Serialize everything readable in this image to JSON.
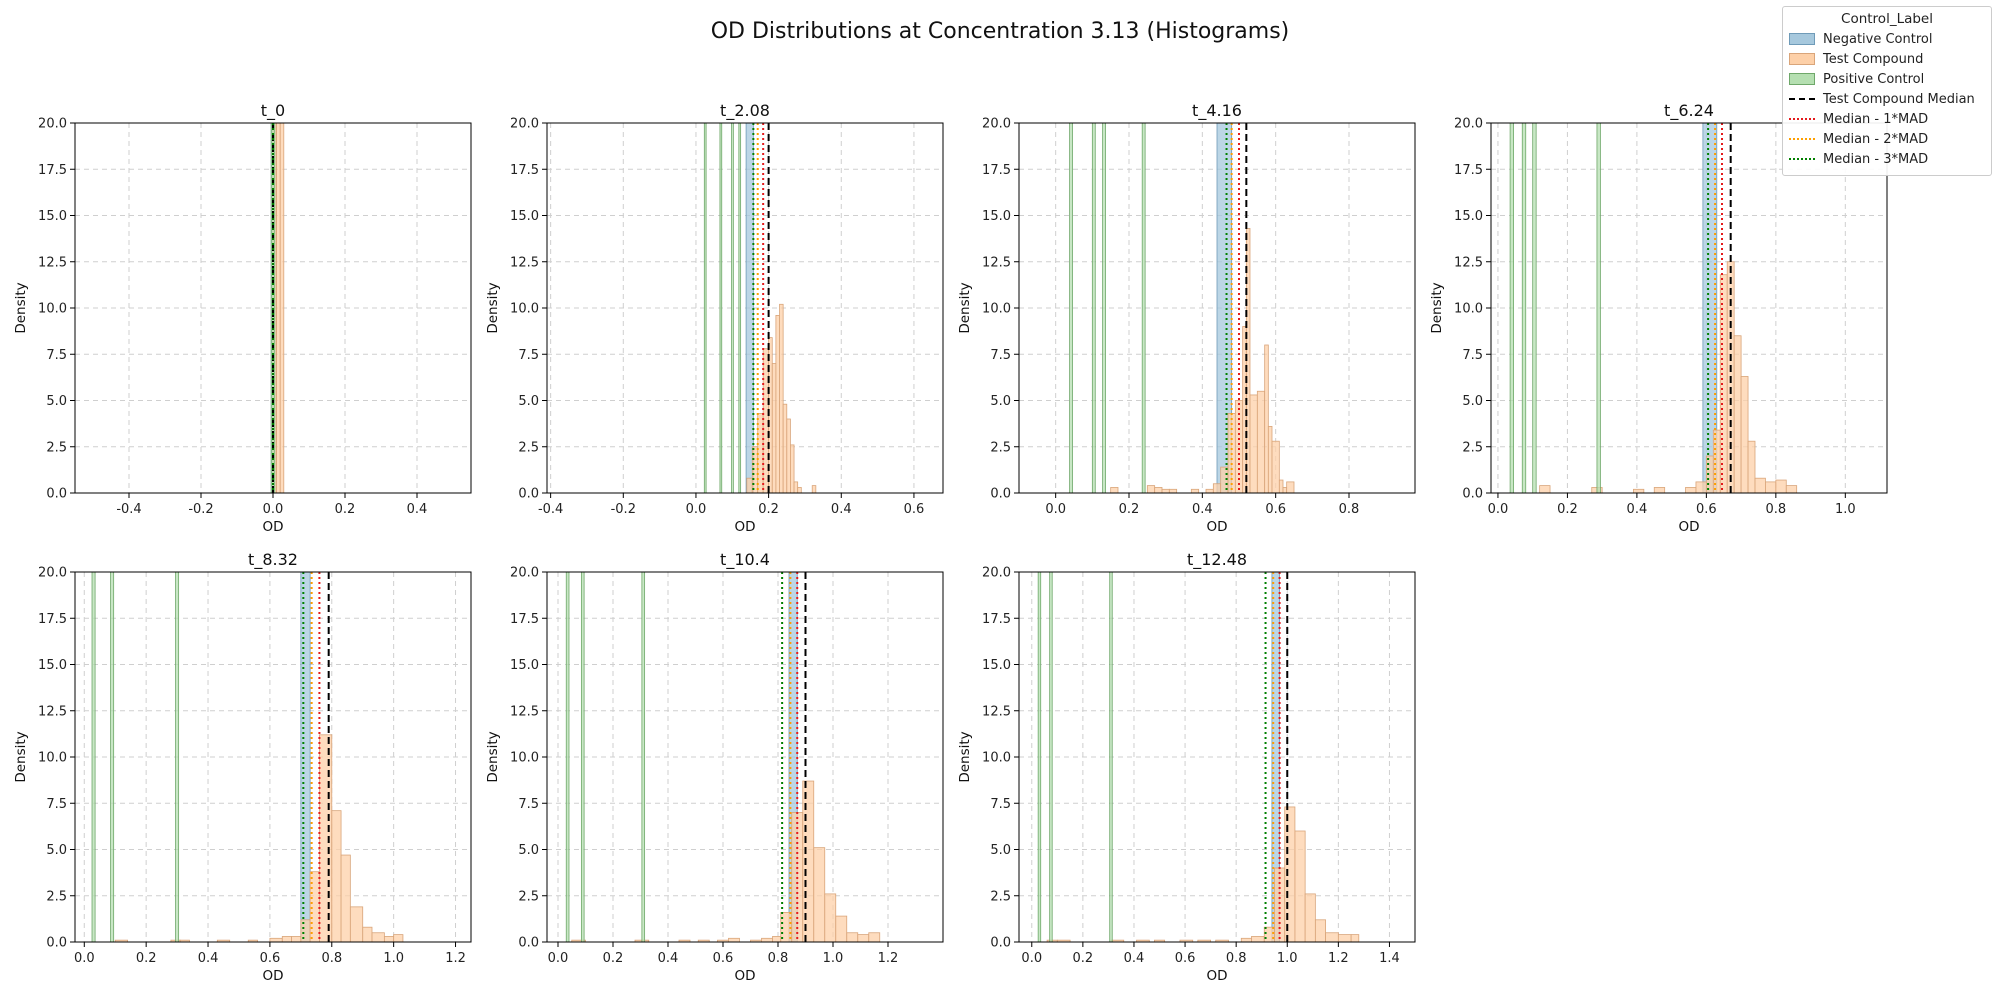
{
  "figure": {
    "title": "OD Distributions at Concentration 3.13 (Histograms)"
  },
  "legend": {
    "title": "Control_Label",
    "items": [
      {
        "label": "Negative Control",
        "kind": "patch",
        "fill": "#a6c8dd",
        "edge": "#6f9bb8"
      },
      {
        "label": "Test Compound",
        "kind": "patch",
        "fill": "#fdd0a8",
        "edge": "#d9a57a"
      },
      {
        "label": "Positive Control",
        "kind": "patch",
        "fill": "#b5dfb1",
        "edge": "#6fa86a"
      },
      {
        "label": "Test Compound Median",
        "kind": "line",
        "color": "#000000",
        "style": "dashed"
      },
      {
        "label": "Median - 1*MAD",
        "kind": "line",
        "color": "#e41a1c",
        "style": "dotted"
      },
      {
        "label": "Median - 2*MAD",
        "kind": "line",
        "color": "#ff9f00",
        "style": "dotted"
      },
      {
        "label": "Median - 3*MAD",
        "kind": "line",
        "color": "#008000",
        "style": "dotted"
      }
    ]
  },
  "chart_data": [
    {
      "type": "bar",
      "title": "t_0",
      "xlabel": "OD",
      "ylabel": "Density",
      "xlim": [
        -0.55,
        0.55
      ],
      "ylim": [
        0,
        20
      ],
      "xticks": [
        -0.4,
        -0.2,
        0.0,
        0.2,
        0.4
      ],
      "yticks": [
        0.0,
        2.5,
        5.0,
        7.5,
        10.0,
        12.5,
        15.0,
        17.5,
        20.0
      ],
      "series": [
        {
          "name": "Negative Control",
          "bins": [
            [
              -0.005,
              0.005,
              100
            ]
          ]
        },
        {
          "name": "Test Compound",
          "bins": [
            [
              0.0,
              0.01,
              100
            ],
            [
              0.01,
              0.02,
              100
            ],
            [
              0.02,
              0.03,
              60
            ]
          ]
        },
        {
          "name": "Positive Control",
          "bins": [
            [
              -0.005,
              0.005,
              100
            ]
          ]
        }
      ],
      "lines": {
        "median": 0.0,
        "mad1": 0.0,
        "mad2": 0.0,
        "mad3": 0.0
      }
    },
    {
      "type": "bar",
      "title": "t_2.08",
      "xlabel": "OD",
      "ylabel": "Density",
      "xlim": [
        -0.41,
        0.68
      ],
      "ylim": [
        0,
        20
      ],
      "xticks": [
        -0.4,
        -0.2,
        0.0,
        0.2,
        0.4,
        0.6
      ],
      "yticks": [
        0.0,
        2.5,
        5.0,
        7.5,
        10.0,
        12.5,
        15.0,
        17.5,
        20.0
      ],
      "series": [
        {
          "name": "Negative Control",
          "bins": [
            [
              0.138,
              0.158,
              40
            ]
          ]
        },
        {
          "name": "Test Compound",
          "bins": [
            [
              0.14,
              0.155,
              0.8
            ],
            [
              0.155,
              0.17,
              2.5
            ],
            [
              0.17,
              0.185,
              4.3
            ],
            [
              0.185,
              0.2,
              7.8
            ],
            [
              0.2,
              0.21,
              8.4
            ],
            [
              0.21,
              0.22,
              7.0
            ],
            [
              0.22,
              0.23,
              9.6
            ],
            [
              0.23,
              0.24,
              10.2
            ],
            [
              0.24,
              0.25,
              4.8
            ],
            [
              0.25,
              0.26,
              4.0
            ],
            [
              0.26,
              0.27,
              2.6
            ],
            [
              0.27,
              0.28,
              0.6
            ],
            [
              0.28,
              0.29,
              0.3
            ],
            [
              0.32,
              0.33,
              0.4
            ]
          ]
        },
        {
          "name": "Positive Control",
          "bins": [
            [
              0.023,
              0.028,
              40
            ],
            [
              0.066,
              0.071,
              40
            ],
            [
              0.098,
              0.103,
              40
            ],
            [
              0.118,
              0.123,
              40
            ]
          ]
        }
      ],
      "lines": {
        "median": 0.2,
        "mad1": 0.185,
        "mad2": 0.17,
        "mad3": 0.158
      }
    },
    {
      "type": "bar",
      "title": "t_4.16",
      "xlabel": "OD",
      "ylabel": "Density",
      "xlim": [
        -0.1,
        0.98
      ],
      "ylim": [
        0,
        20
      ],
      "xticks": [
        0.0,
        0.2,
        0.4,
        0.6,
        0.8
      ],
      "yticks": [
        0.0,
        2.5,
        5.0,
        7.5,
        10.0,
        12.5,
        15.0,
        17.5,
        20.0
      ],
      "series": [
        {
          "name": "Negative Control",
          "bins": [
            [
              0.44,
              0.48,
              40
            ]
          ]
        },
        {
          "name": "Test Compound",
          "bins": [
            [
              0.15,
              0.17,
              0.3
            ],
            [
              0.25,
              0.27,
              0.4
            ],
            [
              0.27,
              0.29,
              0.3
            ],
            [
              0.29,
              0.31,
              0.2
            ],
            [
              0.31,
              0.33,
              0.2
            ],
            [
              0.37,
              0.39,
              0.2
            ],
            [
              0.41,
              0.43,
              0.2
            ],
            [
              0.43,
              0.45,
              0.5
            ],
            [
              0.45,
              0.47,
              1.4
            ],
            [
              0.47,
              0.49,
              4.3
            ],
            [
              0.49,
              0.51,
              5.0
            ],
            [
              0.51,
              0.52,
              9.0
            ],
            [
              0.52,
              0.53,
              14.3
            ],
            [
              0.53,
              0.55,
              5.3
            ],
            [
              0.55,
              0.57,
              5.5
            ],
            [
              0.57,
              0.58,
              8.0
            ],
            [
              0.58,
              0.59,
              3.6
            ],
            [
              0.59,
              0.61,
              2.8
            ],
            [
              0.61,
              0.62,
              0.7
            ],
            [
              0.62,
              0.63,
              0.3
            ],
            [
              0.63,
              0.65,
              0.6
            ]
          ]
        },
        {
          "name": "Positive Control",
          "bins": [
            [
              0.038,
              0.046,
              40
            ],
            [
              0.1,
              0.108,
              40
            ],
            [
              0.128,
              0.136,
              40
            ],
            [
              0.236,
              0.244,
              40
            ]
          ]
        }
      ],
      "lines": {
        "median": 0.52,
        "mad1": 0.5,
        "mad2": 0.48,
        "mad3": 0.466
      }
    },
    {
      "type": "bar",
      "title": "t_6.24",
      "xlabel": "OD",
      "ylabel": "Density",
      "xlim": [
        -0.02,
        1.12
      ],
      "ylim": [
        0,
        20
      ],
      "xticks": [
        0.0,
        0.2,
        0.4,
        0.6,
        0.8,
        1.0
      ],
      "yticks": [
        0.0,
        2.5,
        5.0,
        7.5,
        10.0,
        12.5,
        15.0,
        17.5,
        20.0
      ],
      "series": [
        {
          "name": "Negative Control",
          "bins": [
            [
              0.59,
              0.63,
              40
            ]
          ]
        },
        {
          "name": "Test Compound",
          "bins": [
            [
              0.12,
              0.15,
              0.4
            ],
            [
              0.27,
              0.3,
              0.3
            ],
            [
              0.39,
              0.42,
              0.2
            ],
            [
              0.45,
              0.48,
              0.3
            ],
            [
              0.54,
              0.57,
              0.3
            ],
            [
              0.57,
              0.6,
              0.6
            ],
            [
              0.6,
              0.62,
              2.0
            ],
            [
              0.62,
              0.64,
              3.4
            ],
            [
              0.64,
              0.66,
              11.8
            ],
            [
              0.66,
              0.68,
              12.5
            ],
            [
              0.68,
              0.7,
              8.5
            ],
            [
              0.7,
              0.72,
              6.3
            ],
            [
              0.72,
              0.74,
              2.8
            ],
            [
              0.74,
              0.77,
              0.8
            ],
            [
              0.77,
              0.8,
              0.6
            ],
            [
              0.8,
              0.83,
              0.7
            ],
            [
              0.83,
              0.86,
              0.4
            ]
          ]
        },
        {
          "name": "Positive Control",
          "bins": [
            [
              0.035,
              0.045,
              40
            ],
            [
              0.07,
              0.08,
              40
            ],
            [
              0.1,
              0.11,
              40
            ],
            [
              0.285,
              0.295,
              40
            ]
          ]
        }
      ],
      "lines": {
        "median": 0.67,
        "mad1": 0.645,
        "mad2": 0.625,
        "mad3": 0.605
      }
    },
    {
      "type": "bar",
      "title": "t_8.32",
      "xlabel": "OD",
      "ylabel": "Density",
      "xlim": [
        -0.03,
        1.25
      ],
      "ylim": [
        0,
        20
      ],
      "xticks": [
        0.0,
        0.2,
        0.4,
        0.6,
        0.8,
        1.0,
        1.2
      ],
      "yticks": [
        0.0,
        2.5,
        5.0,
        7.5,
        10.0,
        12.5,
        15.0,
        17.5,
        20.0
      ],
      "series": [
        {
          "name": "Negative Control",
          "bins": [
            [
              0.7,
              0.73,
              40
            ]
          ]
        },
        {
          "name": "Test Compound",
          "bins": [
            [
              0.1,
              0.14,
              0.1
            ],
            [
              0.28,
              0.31,
              0.1
            ],
            [
              0.31,
              0.34,
              0.1
            ],
            [
              0.43,
              0.47,
              0.1
            ],
            [
              0.53,
              0.56,
              0.1
            ],
            [
              0.6,
              0.64,
              0.2
            ],
            [
              0.64,
              0.67,
              0.3
            ],
            [
              0.67,
              0.7,
              0.3
            ],
            [
              0.7,
              0.73,
              1.2
            ],
            [
              0.73,
              0.76,
              3.8
            ],
            [
              0.76,
              0.8,
              11.2
            ],
            [
              0.8,
              0.83,
              7.1
            ],
            [
              0.83,
              0.86,
              4.7
            ],
            [
              0.86,
              0.9,
              1.9
            ],
            [
              0.9,
              0.93,
              0.8
            ],
            [
              0.93,
              0.97,
              0.5
            ],
            [
              0.97,
              1.0,
              0.3
            ],
            [
              1.0,
              1.03,
              0.4
            ]
          ]
        },
        {
          "name": "Positive Control",
          "bins": [
            [
              0.025,
              0.035,
              40
            ],
            [
              0.085,
              0.095,
              40
            ],
            [
              0.295,
              0.305,
              40
            ]
          ]
        }
      ],
      "lines": {
        "median": 0.79,
        "mad1": 0.76,
        "mad2": 0.735,
        "mad3": 0.708
      }
    },
    {
      "type": "bar",
      "title": "t_10.4",
      "xlabel": "OD",
      "ylabel": "Density",
      "xlim": [
        -0.04,
        1.4
      ],
      "ylim": [
        0,
        20
      ],
      "xticks": [
        0.0,
        0.2,
        0.4,
        0.6,
        0.8,
        1.0,
        1.2
      ],
      "yticks": [
        0.0,
        2.5,
        5.0,
        7.5,
        10.0,
        12.5,
        15.0,
        17.5,
        20.0
      ],
      "series": [
        {
          "name": "Negative Control",
          "bins": [
            [
              0.84,
              0.87,
              40
            ]
          ]
        },
        {
          "name": "Test Compound",
          "bins": [
            [
              0.05,
              0.1,
              0.1
            ],
            [
              0.28,
              0.33,
              0.1
            ],
            [
              0.44,
              0.48,
              0.1
            ],
            [
              0.51,
              0.55,
              0.1
            ],
            [
              0.58,
              0.62,
              0.1
            ],
            [
              0.62,
              0.66,
              0.2
            ],
            [
              0.7,
              0.74,
              0.1
            ],
            [
              0.74,
              0.78,
              0.2
            ],
            [
              0.78,
              0.81,
              0.3
            ],
            [
              0.81,
              0.85,
              1.6
            ],
            [
              0.85,
              0.89,
              7.0
            ],
            [
              0.89,
              0.93,
              8.7
            ],
            [
              0.93,
              0.97,
              5.1
            ],
            [
              0.97,
              1.01,
              2.6
            ],
            [
              1.01,
              1.05,
              1.4
            ],
            [
              1.05,
              1.09,
              0.5
            ],
            [
              1.09,
              1.13,
              0.4
            ],
            [
              1.13,
              1.17,
              0.5
            ]
          ]
        },
        {
          "name": "Positive Control",
          "bins": [
            [
              0.03,
              0.04,
              40
            ],
            [
              0.085,
              0.095,
              40
            ],
            [
              0.305,
              0.315,
              40
            ]
          ]
        }
      ],
      "lines": {
        "median": 0.9,
        "mad1": 0.87,
        "mad2": 0.845,
        "mad3": 0.815
      }
    },
    {
      "type": "bar",
      "title": "t_12.48",
      "xlabel": "OD",
      "ylabel": "Density",
      "xlim": [
        -0.05,
        1.5
      ],
      "ylim": [
        0,
        20
      ],
      "xticks": [
        0.0,
        0.2,
        0.4,
        0.6,
        0.8,
        1.0,
        1.2,
        1.4
      ],
      "yticks": [
        0.0,
        2.5,
        5.0,
        7.5,
        10.0,
        12.5,
        15.0,
        17.5,
        20.0
      ],
      "series": [
        {
          "name": "Negative Control",
          "bins": [
            [
              0.94,
              0.97,
              40
            ]
          ]
        },
        {
          "name": "Test Compound",
          "bins": [
            [
              0.06,
              0.1,
              0.1
            ],
            [
              0.1,
              0.15,
              0.1
            ],
            [
              0.31,
              0.36,
              0.1
            ],
            [
              0.41,
              0.46,
              0.1
            ],
            [
              0.48,
              0.52,
              0.1
            ],
            [
              0.58,
              0.63,
              0.1
            ],
            [
              0.65,
              0.7,
              0.1
            ],
            [
              0.72,
              0.77,
              0.1
            ],
            [
              0.82,
              0.86,
              0.2
            ],
            [
              0.86,
              0.91,
              0.3
            ],
            [
              0.91,
              0.95,
              0.8
            ],
            [
              0.95,
              0.99,
              4.0
            ],
            [
              0.99,
              1.03,
              7.3
            ],
            [
              1.03,
              1.07,
              6.0
            ],
            [
              1.07,
              1.11,
              2.6
            ],
            [
              1.11,
              1.15,
              1.2
            ],
            [
              1.15,
              1.2,
              0.5
            ],
            [
              1.2,
              1.25,
              0.4
            ],
            [
              1.25,
              1.28,
              0.4
            ]
          ]
        },
        {
          "name": "Positive Control",
          "bins": [
            [
              0.025,
              0.035,
              40
            ],
            [
              0.07,
              0.08,
              40
            ],
            [
              0.305,
              0.315,
              40
            ]
          ]
        }
      ],
      "lines": {
        "median": 1.0,
        "mad1": 0.97,
        "mad2": 0.945,
        "mad3": 0.915
      }
    }
  ]
}
